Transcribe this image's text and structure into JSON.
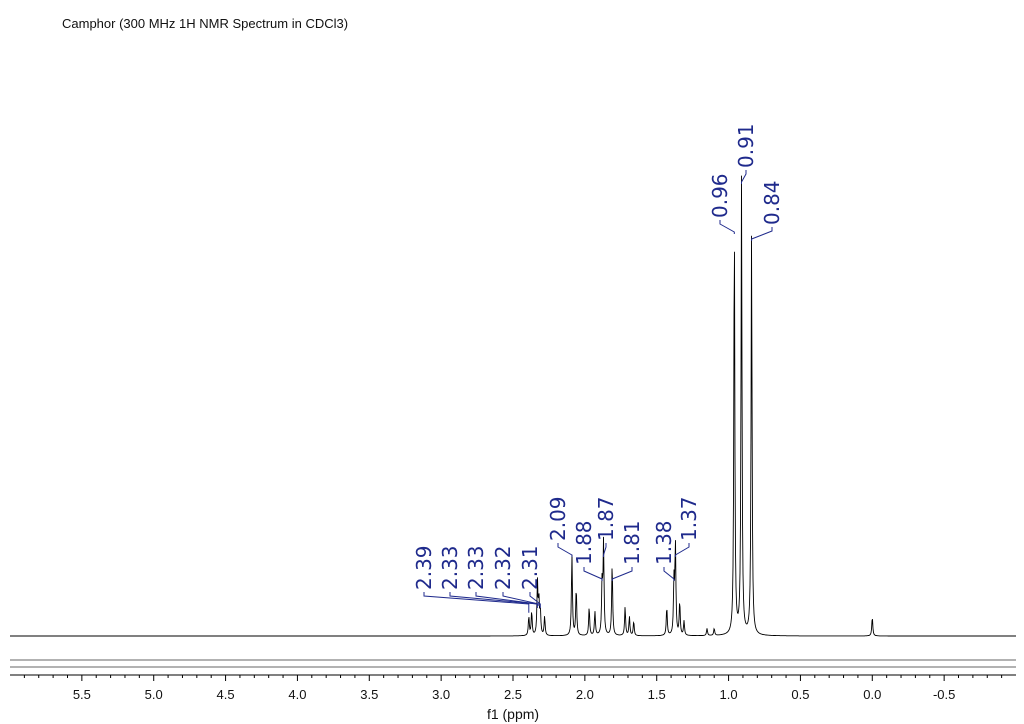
{
  "chart_data": {
    "type": "line",
    "title": "Camphor (300 MHz 1H NMR Spectrum in CDCl3)",
    "xlabel": "f1 (ppm)",
    "x_reversed": true,
    "xlim": [
      6.0,
      -1.0
    ],
    "x_ticks": [
      {
        "value": 5.5,
        "label": "5.5"
      },
      {
        "value": 5.0,
        "label": "5.0"
      },
      {
        "value": 4.5,
        "label": "4.5"
      },
      {
        "value": 4.0,
        "label": "4.0"
      },
      {
        "value": 3.5,
        "label": "3.5"
      },
      {
        "value": 3.0,
        "label": "3.0"
      },
      {
        "value": 2.5,
        "label": "2.5"
      },
      {
        "value": 2.0,
        "label": "2.0"
      },
      {
        "value": 1.5,
        "label": "1.5"
      },
      {
        "value": 1.0,
        "label": "1.0"
      },
      {
        "value": 0.5,
        "label": "0.5"
      },
      {
        "value": 0.0,
        "label": "0.0"
      },
      {
        "value": -0.5,
        "label": "-0.5"
      }
    ],
    "peaks": [
      {
        "shift": 2.39,
        "label": "2.39",
        "height": 0.04
      },
      {
        "shift": 2.33,
        "label": "2.33",
        "height": 0.06
      },
      {
        "shift": 2.33,
        "label": "2.33",
        "height": 0.05
      },
      {
        "shift": 2.32,
        "label": "2.32",
        "height": 0.07
      },
      {
        "shift": 2.31,
        "label": "2.31",
        "height": 0.05
      },
      {
        "shift": 2.09,
        "label": "2.09",
        "height": 0.17
      },
      {
        "shift": 1.88,
        "label": "1.88",
        "height": 0.11
      },
      {
        "shift": 1.87,
        "label": "1.87",
        "height": 0.19
      },
      {
        "shift": 1.81,
        "label": "1.81",
        "height": 0.15
      },
      {
        "shift": 1.38,
        "label": "1.38",
        "height": 0.11
      },
      {
        "shift": 1.37,
        "label": "1.37",
        "height": 0.19
      },
      {
        "shift": 0.96,
        "label": "0.96",
        "height": 0.87
      },
      {
        "shift": 0.91,
        "label": "0.91",
        "height": 0.95
      },
      {
        "shift": 0.84,
        "label": "0.84",
        "height": 0.84
      }
    ],
    "extra_signals": [
      {
        "shift": 2.37,
        "height": 0.05
      },
      {
        "shift": 2.28,
        "height": 0.04
      },
      {
        "shift": 2.06,
        "height": 0.1
      },
      {
        "shift": 1.97,
        "height": 0.06
      },
      {
        "shift": 1.93,
        "height": 0.05
      },
      {
        "shift": 1.72,
        "height": 0.06
      },
      {
        "shift": 1.69,
        "height": 0.04
      },
      {
        "shift": 1.66,
        "height": 0.03
      },
      {
        "shift": 1.43,
        "height": 0.06
      },
      {
        "shift": 1.34,
        "height": 0.07
      },
      {
        "shift": 1.31,
        "height": 0.03
      },
      {
        "shift": 1.15,
        "height": 0.015
      },
      {
        "shift": 1.1,
        "height": 0.015
      },
      {
        "shift": 0.0,
        "height": 0.04
      }
    ],
    "grid": false,
    "legend": "none"
  }
}
